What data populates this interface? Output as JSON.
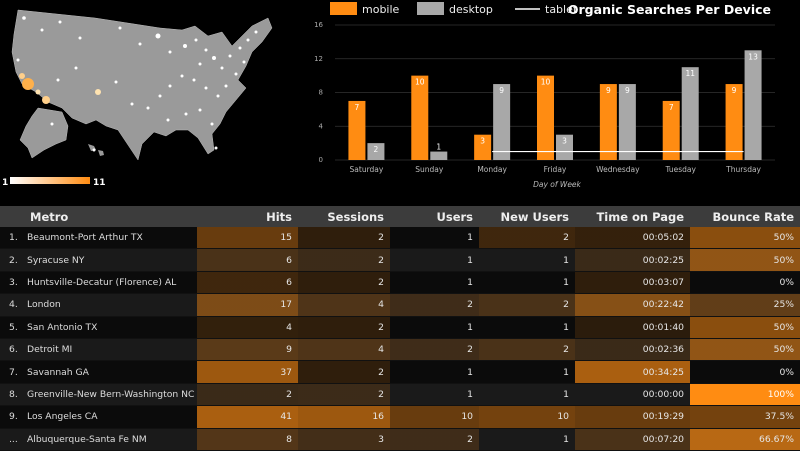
{
  "map": {
    "scale_min": "1",
    "scale_max": "11",
    "colors": {
      "land": "#9a9a9a",
      "dot": "#ffffff",
      "hot": "#ffb04a"
    }
  },
  "chart_data": {
    "type": "bar",
    "title": "Organic Searches Per Device",
    "xlabel": "Day of Week",
    "ylabel": "",
    "categories": [
      "Saturday",
      "Sunday",
      "Monday",
      "Friday",
      "Wednesday",
      "Tuesday",
      "Thursday"
    ],
    "series": [
      {
        "name": "mobile",
        "type": "bar",
        "color": "#ff8c12",
        "values": [
          7,
          10,
          3,
          10,
          9,
          7,
          9
        ]
      },
      {
        "name": "desktop",
        "type": "bar",
        "color": "#a8a8a8",
        "values": [
          2,
          1,
          9,
          3,
          9,
          11,
          13
        ]
      },
      {
        "name": "tablet",
        "type": "line",
        "color": "#ffffff",
        "values": [
          1,
          1,
          1,
          1,
          1,
          1,
          1
        ]
      }
    ],
    "ylim": [
      0,
      16
    ],
    "yticks": [
      0,
      4,
      8,
      12,
      16
    ],
    "grid": true,
    "legend_position": "top-left"
  },
  "table": {
    "columns": [
      "Metro",
      "Hits",
      "Sessions",
      "Users",
      "New Users",
      "Time on Page",
      "Bounce Rate"
    ],
    "heat_color": "#ff8c12",
    "rows": [
      {
        "index": "1.",
        "metro": "Beaumont-Port Arthur TX",
        "hits": "15",
        "sessions": "2",
        "users": "1",
        "new_users": "2",
        "time_on_page": "00:05:02",
        "bounce_rate": "50%",
        "heat": [
          0.3,
          0.03,
          0,
          0.1,
          0.06,
          0.45
        ]
      },
      {
        "index": "2.",
        "metro": "Syracuse NY",
        "hits": "6",
        "sessions": "2",
        "users": "1",
        "new_users": "1",
        "time_on_page": "00:02:25",
        "bounce_rate": "50%",
        "heat": [
          0.1,
          0.03,
          0,
          0,
          0.02,
          0.45
        ]
      },
      {
        "index": "3.",
        "metro": "Huntsville-Decatur (Florence) AL",
        "hits": "6",
        "sessions": "2",
        "users": "1",
        "new_users": "1",
        "time_on_page": "00:03:07",
        "bounce_rate": "0%",
        "heat": [
          0.1,
          0.03,
          0,
          0,
          0.03,
          0
        ]
      },
      {
        "index": "4.",
        "metro": "London",
        "hits": "17",
        "sessions": "4",
        "users": "2",
        "new_users": "2",
        "time_on_page": "00:22:42",
        "bounce_rate": "25%",
        "heat": [
          0.35,
          0.12,
          0.05,
          0.1,
          0.4,
          0.22
        ]
      },
      {
        "index": "5.",
        "metro": "San Antonio TX",
        "hits": "4",
        "sessions": "2",
        "users": "1",
        "new_users": "1",
        "time_on_page": "00:01:40",
        "bounce_rate": "50%",
        "heat": [
          0.05,
          0.03,
          0,
          0,
          0.01,
          0.45
        ]
      },
      {
        "index": "6.",
        "metro": "Detroit MI",
        "hits": "9",
        "sessions": "4",
        "users": "2",
        "new_users": "2",
        "time_on_page": "00:02:36",
        "bounce_rate": "50%",
        "heat": [
          0.18,
          0.12,
          0.05,
          0.1,
          0.02,
          0.45
        ]
      },
      {
        "index": "7.",
        "metro": "Savannah GA",
        "hits": "37",
        "sessions": "2",
        "users": "1",
        "new_users": "1",
        "time_on_page": "00:34:25",
        "bounce_rate": "0%",
        "heat": [
          0.55,
          0.03,
          0,
          0,
          0.6,
          0
        ]
      },
      {
        "index": "8.",
        "metro": "Greenville-New Bern-Washington NC",
        "hits": "2",
        "sessions": "2",
        "users": "1",
        "new_users": "1",
        "time_on_page": "00:00:00",
        "bounce_rate": "100%",
        "heat": [
          0.02,
          0.03,
          0,
          0,
          0,
          1.0
        ]
      },
      {
        "index": "9.",
        "metro": "Los Angeles CA",
        "hits": "41",
        "sessions": "16",
        "users": "10",
        "new_users": "10",
        "time_on_page": "00:19:29",
        "bounce_rate": "37.5%",
        "heat": [
          0.6,
          0.55,
          0.3,
          0.35,
          0.3,
          0.35
        ]
      },
      {
        "index": "...",
        "metro": "Albuquerque-Santa Fe NM",
        "hits": "8",
        "sessions": "3",
        "users": "2",
        "new_users": "1",
        "time_on_page": "00:07:20",
        "bounce_rate": "66.67%",
        "heat": [
          0.15,
          0.07,
          0.05,
          0,
          0.1,
          0.65
        ]
      }
    ]
  }
}
